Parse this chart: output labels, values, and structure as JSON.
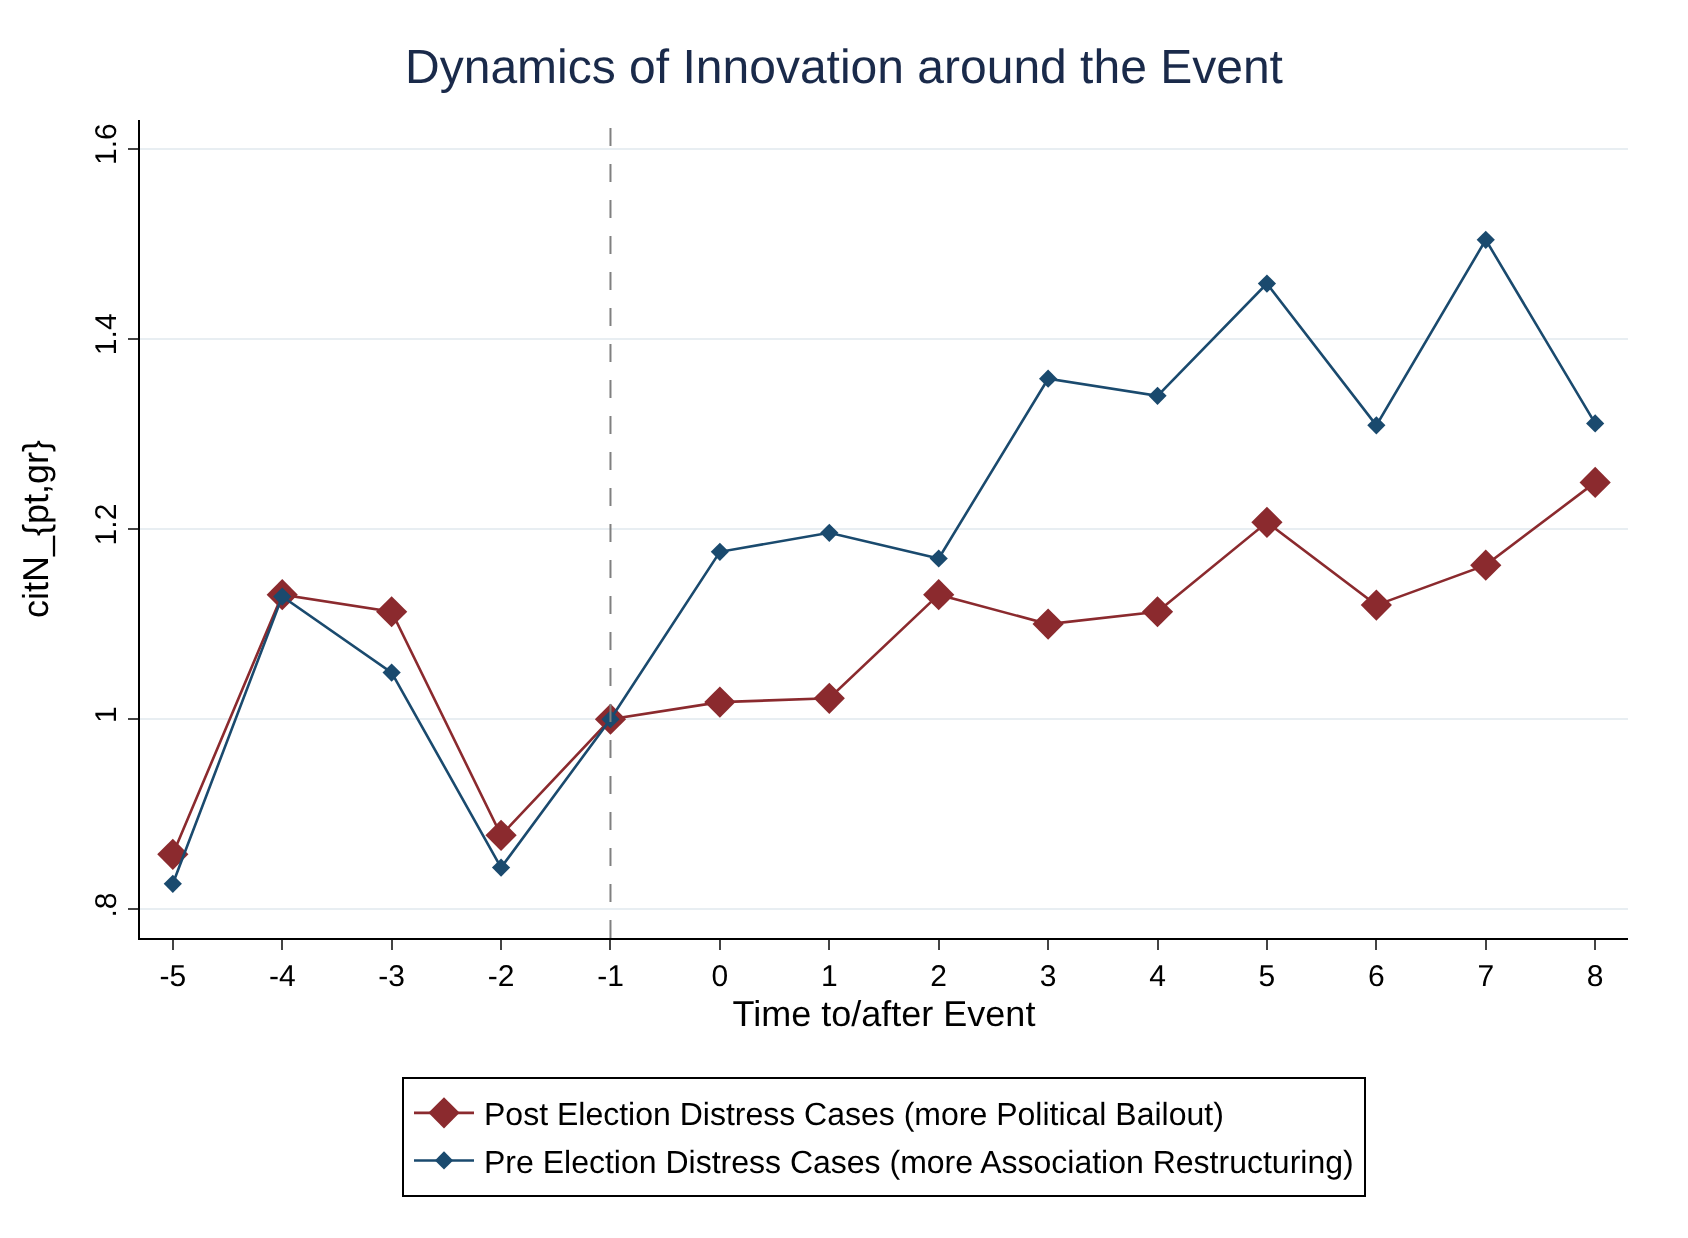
{
  "chart_data": {
    "type": "line",
    "title": "Dynamics of Innovation around the Event",
    "xlabel": "Time to/after Event",
    "ylabel": "citN_{pt,gr}",
    "x": [
      -5,
      -4,
      -3,
      -2,
      -1,
      0,
      1,
      2,
      3,
      4,
      5,
      6,
      7,
      8
    ],
    "series": [
      {
        "name": "Post Election Distress Cases (more Political Bailout)",
        "color": "#8b2a2e",
        "marker": "diamond",
        "values": [
          0.858,
          1.131,
          1.113,
          0.878,
          1.0,
          1.018,
          1.022,
          1.131,
          1.1,
          1.113,
          1.207,
          1.12,
          1.162,
          1.249
        ]
      },
      {
        "name": "Pre Election Distress Cases (more Association Restructuring)",
        "color": "#1a4a6e",
        "marker": "diamond",
        "values": [
          0.827,
          1.129,
          1.049,
          0.844,
          1.0,
          1.176,
          1.196,
          1.169,
          1.358,
          1.34,
          1.458,
          1.309,
          1.504,
          1.311
        ]
      }
    ],
    "xlim": [
      -5.3,
      8.3
    ],
    "xticks": [
      -5,
      -4,
      -3,
      -2,
      -1,
      0,
      1,
      2,
      3,
      4,
      5,
      6,
      7,
      8
    ],
    "ylim": [
      0.77,
      1.63
    ],
    "yticks": [
      {
        "value": 0.8,
        "label": ".8"
      },
      1,
      1.2,
      1.4,
      1.6
    ],
    "ref_lines": [
      {
        "axis": "x",
        "value": -1,
        "color": "#808080",
        "line_style": "dashed"
      }
    ],
    "grid": "y",
    "legend": "bottom",
    "line_style": "solid"
  }
}
